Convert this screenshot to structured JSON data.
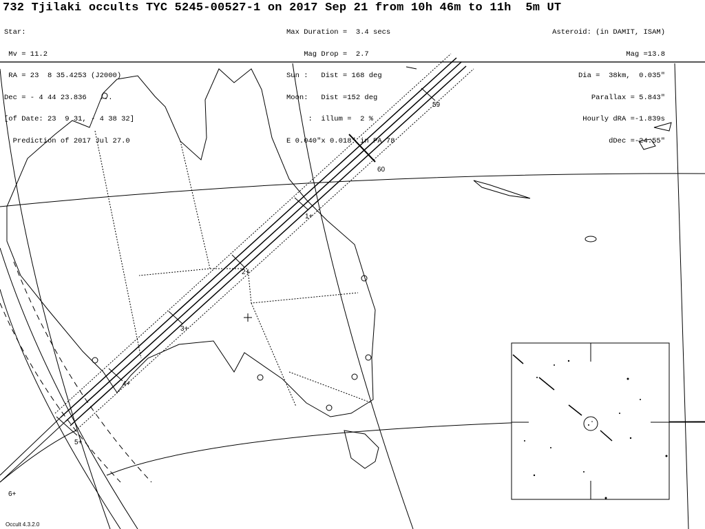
{
  "header": {
    "title": "732 Tjilaki occults TYC 5245-00527-1 on 2017 Sep 21 from 10h 46m to 11h  5m UT",
    "star": [
      "Star:",
      " Mv = 11.2",
      " RA = 23  8 35.4253 (J2000)",
      "Dec = - 4 44 23.836   ...",
      "[of Date: 23  9 31, - 4 38 32]",
      "  Prediction of 2017 Jul 27.0"
    ],
    "event": [
      "Max Duration =  3.4 secs",
      "    Mag Drop =  2.7",
      "Sun :   Dist = 168 deg",
      "Moon:   Dist =152 deg",
      "     :  illum =  2 %",
      "E 0.040\"x 0.018\" in PA 78"
    ],
    "asteroid": [
      "Asteroid: (in DAMIT, ISAM)",
      "Mag =13.8",
      "Dia =  38km,  0.035\"",
      "Parallax = 5.843\"",
      "Hourly dRA =-1.839s",
      "dDec =-24.55\""
    ]
  },
  "map": {
    "time_labels": [
      "59",
      "60",
      "1+",
      "2+",
      "3+",
      "4+",
      "5+",
      "6+"
    ],
    "path_color": "#000000",
    "label_color": "#7a5a00"
  },
  "footer": "Occult 4.3.2.0"
}
